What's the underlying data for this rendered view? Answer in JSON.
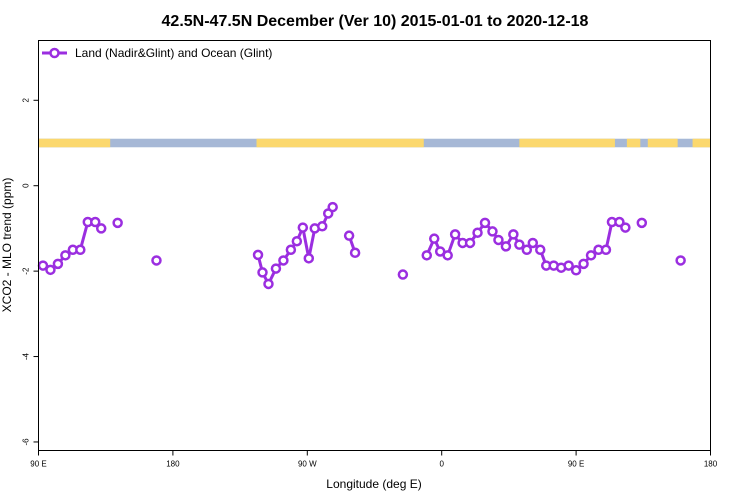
{
  "chart_data": {
    "type": "line",
    "title": "42.5N-47.5N December (Ver 10)   2015-01-01 to 2020-12-18",
    "xlabel": "Longitude (deg E)",
    "ylabel": "XCO2 - MLO trend (ppm)",
    "xlim": [
      90,
      540
    ],
    "ylim": [
      -6.2,
      3.4
    ],
    "x_ticks": [
      {
        "value": 90,
        "label": "90 E"
      },
      {
        "value": 180,
        "label": "180"
      },
      {
        "value": 270,
        "label": "90 W"
      },
      {
        "value": 360,
        "label": "0"
      },
      {
        "value": 450,
        "label": "90 E"
      },
      {
        "value": 540,
        "label": "180"
      }
    ],
    "y_ticks": [
      {
        "value": 2,
        "label": "2"
      },
      {
        "value": 0,
        "label": "0"
      },
      {
        "value": -2,
        "label": "-2"
      },
      {
        "value": -4,
        "label": "-4"
      },
      {
        "value": -6,
        "label": "-6"
      }
    ],
    "legend": {
      "position": "top-left",
      "entries": [
        "Land (Nadir&Glint) and Ocean (Glint)"
      ]
    },
    "colors": {
      "series": "#9b2ee0",
      "land": "#fbd86e",
      "ocean": "#a6b8d6"
    },
    "land_ocean_strip": {
      "y_range": [
        0.9,
        1.1
      ],
      "land_lon_ranges": [
        [
          90,
          138
        ],
        [
          236,
          348
        ],
        [
          412,
          476
        ],
        [
          484,
          493
        ],
        [
          498,
          518
        ],
        [
          528,
          540
        ]
      ]
    },
    "series": [
      {
        "name": "Land (Nadir&Glint) and Ocean (Glint)",
        "segments": [
          [
            [
              93,
              -1.87
            ],
            [
              98,
              -1.97
            ],
            [
              103,
              -1.83
            ],
            [
              108,
              -1.63
            ],
            [
              113,
              -1.5
            ],
            [
              118,
              -1.5
            ],
            [
              123,
              -0.85
            ],
            [
              128,
              -0.85
            ],
            [
              132,
              -1.0
            ]
          ],
          [
            [
              143,
              -0.87
            ]
          ],
          [
            [
              169,
              -1.75
            ]
          ],
          [
            [
              237,
              -1.62
            ],
            [
              240,
              -2.03
            ],
            [
              244,
              -2.3
            ],
            [
              249,
              -1.94
            ],
            [
              254,
              -1.75
            ],
            [
              259,
              -1.5
            ],
            [
              263,
              -1.3
            ],
            [
              267,
              -0.98
            ],
            [
              271,
              -1.7
            ],
            [
              275,
              -1.0
            ],
            [
              280,
              -0.95
            ],
            [
              284,
              -0.65
            ],
            [
              287,
              -0.5
            ]
          ],
          [
            [
              298,
              -1.17
            ],
            [
              302,
              -1.57
            ]
          ],
          [
            [
              334,
              -2.08
            ]
          ],
          [
            [
              350,
              -1.63
            ],
            [
              355,
              -1.24
            ],
            [
              359,
              -1.54
            ],
            [
              364,
              -1.63
            ],
            [
              369,
              -1.14
            ],
            [
              374,
              -1.34
            ],
            [
              379,
              -1.34
            ],
            [
              384,
              -1.1
            ],
            [
              389,
              -0.87
            ],
            [
              394,
              -1.07
            ],
            [
              398,
              -1.27
            ],
            [
              403,
              -1.42
            ],
            [
              408,
              -1.14
            ],
            [
              412,
              -1.38
            ],
            [
              417,
              -1.5
            ],
            [
              421,
              -1.34
            ],
            [
              426,
              -1.5
            ],
            [
              430,
              -1.87
            ],
            [
              435,
              -1.87
            ],
            [
              440,
              -1.92
            ],
            [
              445,
              -1.87
            ],
            [
              450,
              -1.98
            ],
            [
              455,
              -1.83
            ],
            [
              460,
              -1.63
            ],
            [
              465,
              -1.5
            ],
            [
              470,
              -1.5
            ],
            [
              474,
              -0.85
            ],
            [
              479,
              -0.85
            ],
            [
              483,
              -0.98
            ]
          ],
          [
            [
              494,
              -0.87
            ]
          ],
          [
            [
              520,
              -1.75
            ]
          ]
        ]
      }
    ]
  }
}
